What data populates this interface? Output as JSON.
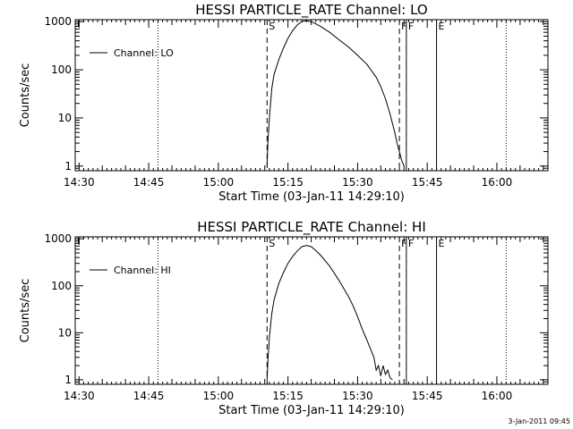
{
  "chart_data": [
    {
      "type": "line",
      "title": "HESSI PARTICLE_RATE Channel: LO",
      "xlabel": "Start Time (03-Jan-11 14:29:10)",
      "ylabel": "Counts/sec",
      "yscale": "log",
      "xlim": [
        "14:29:10",
        "16:11:00"
      ],
      "ylim": [
        0.8,
        1100
      ],
      "x_ticks": [
        "14:30",
        "14:45",
        "15:00",
        "15:15",
        "15:30",
        "15:45",
        "16:00"
      ],
      "y_ticks": [
        "1",
        "10",
        "100",
        "1000"
      ],
      "legend": {
        "placement": "top-left",
        "entries": [
          "Channel: LO"
        ]
      },
      "markers": [
        {
          "label": "S",
          "time": "15:10:30",
          "style": "dashed"
        },
        {
          "label": "F",
          "time": "15:39:00",
          "style": "dashed"
        },
        {
          "label": "F",
          "time": "15:40:30",
          "style": "solid"
        },
        {
          "label": "E",
          "time": "15:47:00",
          "style": "solid"
        }
      ],
      "dotted_lines": [
        "14:47:00",
        "16:02:00"
      ],
      "series": [
        {
          "name": "Channel: LO",
          "x": [
            "15:10:30",
            "15:10:40",
            "15:11:00",
            "15:11:30",
            "15:12:00",
            "15:13:00",
            "15:14:00",
            "15:15:00",
            "15:16:00",
            "15:17:00",
            "15:18:00",
            "15:19:00",
            "15:20:00",
            "15:21:00",
            "15:22:00",
            "15:24:00",
            "15:26:00",
            "15:28:00",
            "15:30:00",
            "15:32:00",
            "15:34:00",
            "15:35:00",
            "15:36:00",
            "15:37:00",
            "15:38:00",
            "15:38:30",
            "15:39:00",
            "15:39:30",
            "15:40:00"
          ],
          "y": [
            1,
            3,
            10,
            40,
            80,
            160,
            280,
            450,
            650,
            850,
            1000,
            1050,
            1000,
            900,
            800,
            600,
            420,
            300,
            200,
            130,
            70,
            45,
            25,
            12,
            5,
            3,
            2,
            1.3,
            1
          ]
        }
      ]
    },
    {
      "type": "line",
      "title": "HESSI PARTICLE_RATE Channel: HI",
      "xlabel": "Start Time (03-Jan-11 14:29:10)",
      "ylabel": "Counts/sec",
      "yscale": "log",
      "xlim": [
        "14:29:10",
        "16:11:00"
      ],
      "ylim": [
        0.8,
        1100
      ],
      "x_ticks": [
        "14:30",
        "14:45",
        "15:00",
        "15:15",
        "15:30",
        "15:45",
        "16:00"
      ],
      "y_ticks": [
        "1",
        "10",
        "100",
        "1000"
      ],
      "legend": {
        "placement": "top-left",
        "entries": [
          "Channel: HI"
        ]
      },
      "markers": [
        {
          "label": "S",
          "time": "15:10:30",
          "style": "dashed"
        },
        {
          "label": "F",
          "time": "15:39:00",
          "style": "dashed"
        },
        {
          "label": "F",
          "time": "15:40:30",
          "style": "solid"
        },
        {
          "label": "E",
          "time": "15:47:00",
          "style": "solid"
        }
      ],
      "dotted_lines": [
        "14:47:00",
        "16:02:00"
      ],
      "series": [
        {
          "name": "Channel: HI",
          "x": [
            "15:10:30",
            "15:10:40",
            "15:11:00",
            "15:11:30",
            "15:12:00",
            "15:13:00",
            "15:14:00",
            "15:15:00",
            "15:16:00",
            "15:17:00",
            "15:18:00",
            "15:19:00",
            "15:20:00",
            "15:21:00",
            "15:22:00",
            "15:24:00",
            "15:26:00",
            "15:28:00",
            "15:29:00",
            "15:30:00",
            "15:31:00",
            "15:32:00",
            "15:33:00",
            "15:33:30",
            "15:34:00",
            "15:34:30",
            "15:35:00",
            "15:35:30",
            "15:36:00",
            "15:36:30",
            "15:37:00",
            "15:37:30"
          ],
          "y": [
            1,
            2.5,
            8,
            25,
            50,
            110,
            190,
            300,
            420,
            550,
            680,
            720,
            680,
            560,
            450,
            260,
            130,
            60,
            38,
            22,
            12,
            7,
            4,
            3,
            1.6,
            2,
            1.2,
            2,
            1.3,
            1.6,
            1.1,
            1
          ]
        }
      ]
    }
  ],
  "timestamp": "3-Jan-2011 09:45"
}
